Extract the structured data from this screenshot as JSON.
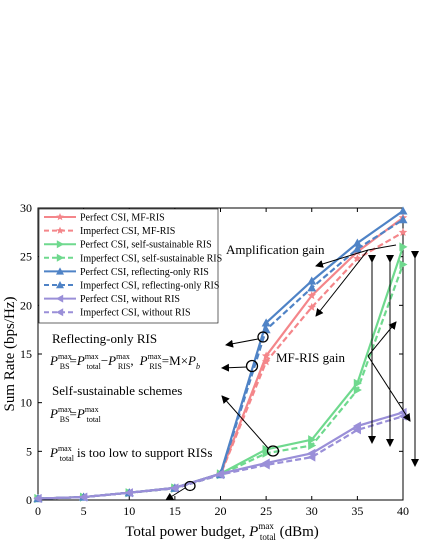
{
  "chart_data": {
    "type": "line",
    "xlim": [
      0,
      40
    ],
    "ylim": [
      0,
      30
    ],
    "xticks": [
      0,
      5,
      10,
      15,
      20,
      25,
      30,
      35,
      40
    ],
    "yticks": [
      0,
      5,
      10,
      15,
      20,
      25,
      30
    ],
    "x": [
      0,
      5,
      10,
      15,
      20,
      25,
      30,
      35,
      40
    ],
    "xlabel": {
      "main": "Total power budget, ",
      "P": "P",
      "sup": "max",
      "sub": "total",
      "unit": " (dBm)"
    },
    "ylabel": "Sum Rate (bps/Hz)",
    "grid": false,
    "legend_position": "top-left",
    "series": [
      {
        "name": "Perfect CSI, MF-RIS",
        "color": "#f4868a",
        "dash": "solid",
        "marker": "star",
        "values": [
          0.15,
          0.3,
          0.75,
          1.25,
          2.7,
          14.8,
          21.0,
          25.5,
          29.0
        ]
      },
      {
        "name": "Imperfect CSI, MF-RIS",
        "color": "#f4868a",
        "dash": "dashed",
        "marker": "star",
        "values": [
          0.15,
          0.3,
          0.75,
          1.2,
          2.6,
          14.2,
          19.8,
          24.8,
          27.5
        ]
      },
      {
        "name": "Perfect CSI, self-sustainable RIS",
        "color": "#6fd98e",
        "dash": "solid",
        "marker": "tri-right",
        "values": [
          0.15,
          0.3,
          0.75,
          1.25,
          2.7,
          5.2,
          6.2,
          12.0,
          26.0
        ]
      },
      {
        "name": "Imperfect CSI, self-sustainable RIS",
        "color": "#6fd98e",
        "dash": "dashed",
        "marker": "tri-right",
        "values": [
          0.15,
          0.3,
          0.75,
          1.2,
          2.6,
          4.8,
          5.6,
          11.3,
          24.2
        ]
      },
      {
        "name": "Perfect CSI, reflecting-only RIS",
        "color": "#4f83c6",
        "dash": "solid",
        "marker": "tri-up",
        "values": [
          0.15,
          0.3,
          0.75,
          1.25,
          2.7,
          18.2,
          22.5,
          26.4,
          29.7
        ]
      },
      {
        "name": "Imperfect CSI, reflecting-only RIS",
        "color": "#4f83c6",
        "dash": "dashed",
        "marker": "tri-up",
        "values": [
          0.15,
          0.3,
          0.75,
          1.2,
          2.6,
          17.5,
          21.8,
          25.8,
          28.8
        ]
      },
      {
        "name": "Perfect CSI, without RIS",
        "color": "#9a8fd8",
        "dash": "solid",
        "marker": "tri-left",
        "values": [
          0.15,
          0.3,
          0.75,
          1.25,
          2.7,
          3.8,
          4.8,
          7.6,
          9.0
        ]
      },
      {
        "name": "Imperfect CSI, without RIS",
        "color": "#9a8fd8",
        "dash": "dashed",
        "marker": "tri-left",
        "values": [
          0.15,
          0.3,
          0.75,
          1.2,
          2.6,
          3.6,
          4.4,
          7.2,
          8.6
        ]
      }
    ],
    "annotations": {
      "amplification_gain": "Amplification gain",
      "mf_ris_gain": "MF-RIS gain",
      "reflecting_only": "Reflecting-only RIS",
      "self_sustainable": "Self-sustainable schemes",
      "too_low": "is too low to support RISs",
      "P": "P",
      "max": "max",
      "BS": "BS",
      "total": "total",
      "RIS": "RIS",
      "eq1": "=",
      "minus": "−",
      "comma": ",",
      "eq2": "=M×",
      "b": "b"
    }
  }
}
